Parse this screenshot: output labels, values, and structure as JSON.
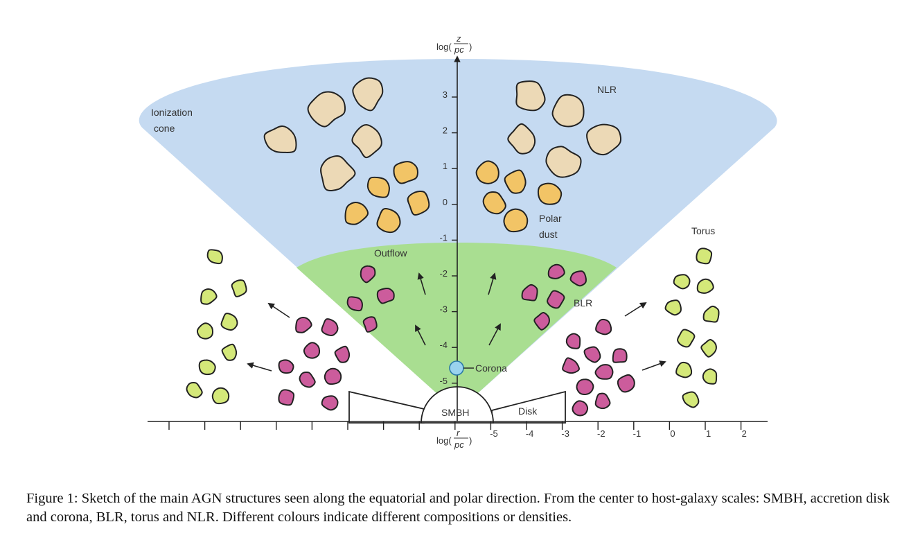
{
  "labels": {
    "ionization_cone": [
      "Ionization",
      "cone"
    ],
    "nlr": "NLR",
    "polar_dust": [
      "Polar",
      "dust"
    ],
    "outflow": "Outflow",
    "blr": "BLR",
    "torus": "Torus",
    "corona": "Corona",
    "smbh": "SMBH",
    "disk": "Disk"
  },
  "axes": {
    "y_label": {
      "prefix": "log(",
      "num": "z",
      "den": "pc",
      "suffix": ")"
    },
    "x_label": {
      "prefix": "log(",
      "num": "r",
      "den": "pc",
      "suffix": ")"
    },
    "y_ticks": [
      "3",
      "2",
      "1",
      "0",
      "-1",
      "-2",
      "-3",
      "-4",
      "-5"
    ],
    "x_ticks": [
      "-5",
      "-4",
      "-3",
      "-2",
      "-1",
      "0",
      "1",
      "2"
    ]
  },
  "colors": {
    "ionization_cone": "#c5daf1",
    "outflow": "#a9de91",
    "nlr_cloud": "#ecd9b6",
    "polar_dust": "#f2c466",
    "blr_cloud": "#cc5c9c",
    "torus_cloud": "#d4e879",
    "corona": "#9ad3ee"
  },
  "caption": "Figure 1: Sketch of the main AGN structures seen along the equatorial and polar direction. From the center to host-galaxy scales: SMBH, accretion disk and corona, BLR, torus and NLR. Different colours indicate different compositions or densities."
}
